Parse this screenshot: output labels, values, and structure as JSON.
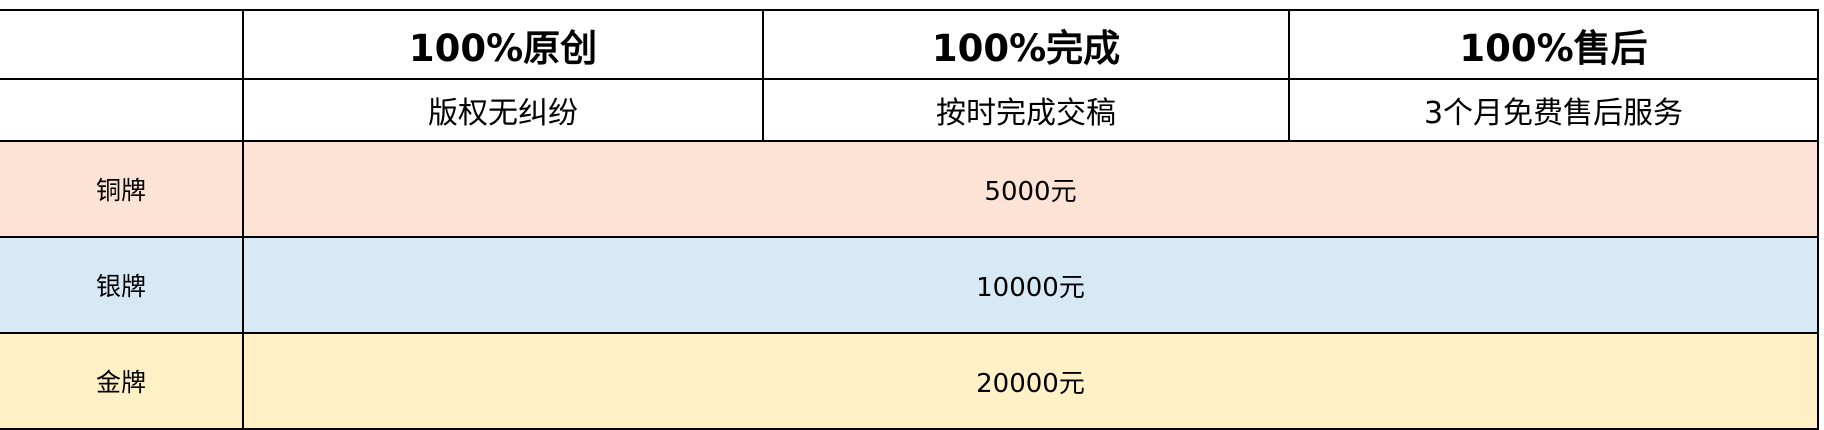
{
  "columns": [
    {
      "title": "100%原创",
      "subtitle": "版权无纠纷"
    },
    {
      "title": "100%完成",
      "subtitle": "按时完成交稿"
    },
    {
      "title": "100%售后",
      "subtitle": "3个月免费售后服务"
    }
  ],
  "tiers": [
    {
      "name": "铜牌",
      "price": "5000元",
      "color": "#fde3d5"
    },
    {
      "name": "银牌",
      "price": "10000元",
      "color": "#d8e9f6"
    },
    {
      "name": "金牌",
      "price": "20000元",
      "color": "#fff1c5"
    }
  ]
}
